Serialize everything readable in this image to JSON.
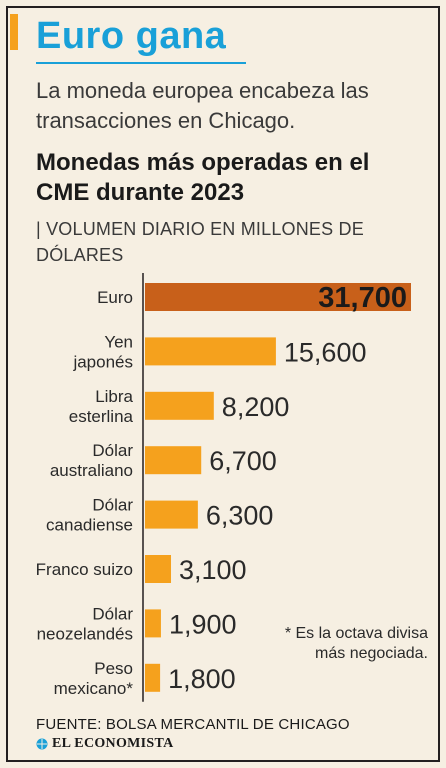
{
  "headline": "Euro gana",
  "subtitle": "La moneda europea encabeza las transacciones en Chicago.",
  "chart_title": "Monedas más operadas en el CME durante 2023",
  "unit_label": "| VOLUMEN DIARIO EN MILLONES DE DÓLARES",
  "footnote": "* Es la octava divisa más negociada.",
  "source": "FUENTE: BOLSA MERCANTIL DE CHICAGO",
  "brand": "EL ECONOMISTA",
  "colors": {
    "headline": "#19a0d8",
    "bar": "#f5a11d",
    "highlight_bar": "#c8601a",
    "background": "#f6efe2",
    "text": "#231f20"
  },
  "chart_data": {
    "type": "bar",
    "orientation": "horizontal",
    "title": "Monedas más operadas en el CME durante 2023",
    "subtitle": "| VOLUMEN DIARIO EN MILLONES DE DÓLARES",
    "categories": [
      [
        "Euro"
      ],
      [
        "Yen",
        "japonés"
      ],
      [
        "Libra",
        "esterlina"
      ],
      [
        "Dólar",
        "australiano"
      ],
      [
        "Dólar",
        "canadiense"
      ],
      [
        "Franco suizo"
      ],
      [
        "Dólar",
        "neozelandés"
      ],
      [
        "Peso",
        "mexicano*"
      ]
    ],
    "values": [
      31700,
      15600,
      8200,
      6700,
      6300,
      3100,
      1900,
      1800
    ],
    "value_labels": [
      "31,700",
      "15,600",
      "8,200",
      "6,700",
      "6,300",
      "3,100",
      "1,900",
      "1,800"
    ],
    "highlight_index": 0,
    "xlim": [
      0,
      31700
    ],
    "grid": false,
    "legend": "none"
  }
}
